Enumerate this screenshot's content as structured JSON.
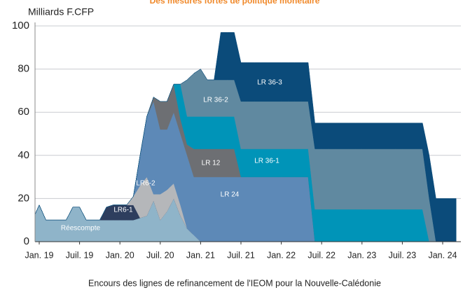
{
  "chart_data": {
    "type": "stacked_area",
    "title": "Des mesures fortes de politique monétaire",
    "y_label": "Milliards F.CFP",
    "caption": "Encours des lignes de refinancement de l'IEOM pour la Nouvelle-Calédonie",
    "categories": [
      null,
      "Jan. 19",
      null,
      null,
      null,
      null,
      null,
      "Juil. 19",
      null,
      null,
      null,
      null,
      null,
      "Jan. 20",
      null,
      null,
      null,
      null,
      null,
      "Juil. 20",
      null,
      null,
      null,
      null,
      null,
      "Jan. 21",
      null,
      null,
      null,
      null,
      null,
      "Juil. 21",
      null,
      null,
      null,
      null,
      null,
      "Jan. 22",
      null,
      null,
      null,
      null,
      null,
      "Juil. 22",
      null,
      null,
      null,
      null,
      null,
      "Jan. 23",
      null,
      null,
      null,
      null,
      null,
      "Juil. 23",
      null,
      null,
      null,
      null,
      null,
      "Jan. 24",
      null,
      null
    ],
    "ylim": [
      0,
      100
    ],
    "yticks": [
      0,
      20,
      40,
      60,
      80,
      100
    ],
    "grid": true,
    "series": [
      {
        "name": "Réescompte",
        "color": "#8fb4c9",
        "values": [
          10,
          17,
          10,
          10,
          10,
          10,
          16,
          16,
          10,
          10,
          10,
          10,
          10,
          10,
          10,
          10,
          11,
          12,
          19,
          10,
          14,
          20,
          12,
          6,
          3,
          0,
          0,
          0,
          0,
          0,
          0,
          0,
          0,
          0,
          0,
          0,
          0,
          0,
          0,
          0,
          0,
          0,
          0,
          0,
          0,
          0,
          0,
          0,
          0,
          0,
          0,
          0,
          0,
          0,
          0,
          0,
          0,
          0,
          0,
          0,
          0,
          0,
          0,
          0
        ]
      },
      {
        "name": "LR6-1",
        "color": "#2e3e5e",
        "values": [
          0,
          0,
          0,
          0,
          0,
          0,
          0,
          0,
          0,
          0,
          0,
          6,
          7,
          7,
          7,
          7,
          0,
          0,
          0,
          0,
          0,
          0,
          0,
          0,
          0,
          0,
          0,
          0,
          0,
          0,
          0,
          0,
          0,
          0,
          0,
          0,
          0,
          0,
          0,
          0,
          0,
          0,
          0,
          0,
          0,
          0,
          0,
          0,
          0,
          0,
          0,
          0,
          0,
          0,
          0,
          0,
          0,
          0,
          0,
          0,
          0,
          0,
          0,
          0
        ]
      },
      {
        "name": "LR6-2",
        "color": "#b5b7ba",
        "values": [
          0,
          0,
          0,
          0,
          0,
          0,
          0,
          0,
          0,
          0,
          0,
          0,
          0,
          0,
          0,
          4,
          15,
          18,
          3,
          12,
          10,
          7,
          5,
          0,
          0,
          0,
          0,
          0,
          0,
          0,
          0,
          0,
          0,
          0,
          0,
          0,
          0,
          0,
          0,
          0,
          0,
          0,
          0,
          0,
          0,
          0,
          0,
          0,
          0,
          0,
          0,
          0,
          0,
          0,
          0,
          0,
          0,
          0,
          0,
          0,
          0,
          0,
          0,
          0
        ]
      },
      {
        "name": "LR 24",
        "color": "#5d89b7",
        "values": [
          0,
          0,
          0,
          0,
          0,
          0,
          0,
          0,
          0,
          0,
          0,
          0,
          0,
          0,
          0,
          0,
          14,
          28,
          43,
          30,
          28,
          33,
          33,
          34,
          27,
          30,
          30,
          30,
          30,
          30,
          30,
          30,
          30,
          30,
          30,
          30,
          30,
          30,
          30,
          30,
          30,
          30,
          0,
          0,
          0,
          0,
          0,
          0,
          0,
          0,
          0,
          0,
          0,
          0,
          0,
          0,
          0,
          0,
          0,
          0,
          0,
          0,
          0,
          0
        ]
      },
      {
        "name": "LR 12",
        "color": "#6d6f73",
        "values": [
          0,
          0,
          0,
          0,
          0,
          0,
          0,
          0,
          0,
          0,
          0,
          0,
          0,
          0,
          0,
          0,
          0,
          0,
          2,
          13,
          13,
          13,
          7,
          5,
          13,
          13,
          13,
          13,
          13,
          13,
          13,
          0,
          0,
          0,
          0,
          0,
          0,
          0,
          0,
          0,
          0,
          0,
          0,
          0,
          0,
          0,
          0,
          0,
          0,
          0,
          0,
          0,
          0,
          0,
          0,
          0,
          0,
          0,
          0,
          0,
          0,
          0,
          0,
          0
        ]
      },
      {
        "name": "LR 36-1",
        "color": "#0094b8",
        "values": [
          0,
          0,
          0,
          0,
          0,
          0,
          0,
          0,
          0,
          0,
          0,
          0,
          0,
          0,
          0,
          0,
          0,
          0,
          0,
          0,
          0,
          0,
          16,
          13,
          15,
          15,
          15,
          15,
          15,
          15,
          15,
          13,
          13,
          13,
          13,
          13,
          13,
          13,
          13,
          13,
          13,
          13,
          15,
          15,
          15,
          15,
          15,
          15,
          15,
          15,
          15,
          15,
          15,
          15,
          15,
          15,
          15,
          15,
          15,
          0,
          0,
          0,
          0,
          0
        ]
      },
      {
        "name": "LR 36-2",
        "color": "#6089a0",
        "values": [
          0,
          0,
          0,
          0,
          0,
          0,
          0,
          0,
          0,
          0,
          0,
          0,
          0,
          0,
          0,
          0,
          0,
          0,
          0,
          0,
          0,
          0,
          0,
          17,
          20,
          22,
          17,
          17,
          17,
          17,
          17,
          22,
          22,
          22,
          22,
          22,
          22,
          22,
          22,
          22,
          22,
          22,
          28,
          28,
          28,
          28,
          28,
          28,
          28,
          28,
          28,
          28,
          28,
          28,
          28,
          28,
          28,
          28,
          28,
          20,
          0,
          0,
          0,
          0
        ]
      },
      {
        "name": "LR 36-3",
        "color": "#0b4b7a",
        "values": [
          0,
          0,
          0,
          0,
          0,
          0,
          0,
          0,
          0,
          0,
          0,
          0,
          0,
          0,
          0,
          0,
          0,
          0,
          0,
          0,
          0,
          0,
          0,
          0,
          0,
          0,
          0,
          0,
          22,
          22,
          22,
          18,
          18,
          18,
          18,
          18,
          18,
          18,
          18,
          18,
          18,
          18,
          12,
          12,
          12,
          12,
          12,
          12,
          12,
          12,
          12,
          12,
          12,
          12,
          12,
          12,
          12,
          12,
          12,
          20,
          20,
          20,
          20,
          20
        ]
      }
    ]
  }
}
